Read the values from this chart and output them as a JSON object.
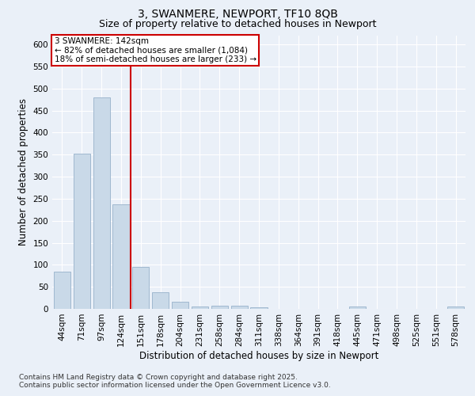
{
  "title": "3, SWANMERE, NEWPORT, TF10 8QB",
  "subtitle": "Size of property relative to detached houses in Newport",
  "xlabel": "Distribution of detached houses by size in Newport",
  "ylabel": "Number of detached properties",
  "categories": [
    "44sqm",
    "71sqm",
    "97sqm",
    "124sqm",
    "151sqm",
    "178sqm",
    "204sqm",
    "231sqm",
    "258sqm",
    "284sqm",
    "311sqm",
    "338sqm",
    "364sqm",
    "391sqm",
    "418sqm",
    "445sqm",
    "471sqm",
    "498sqm",
    "525sqm",
    "551sqm",
    "578sqm"
  ],
  "values": [
    85,
    352,
    480,
    238,
    96,
    37,
    16,
    6,
    8,
    8,
    4,
    0,
    0,
    0,
    0,
    5,
    0,
    0,
    0,
    0,
    5
  ],
  "bar_color": "#c9d9e8",
  "bar_edgecolor": "#a0b8d0",
  "redline_x": 3.5,
  "annotation_title": "3 SWANMERE: 142sqm",
  "annotation_line1": "← 82% of detached houses are smaller (1,084)",
  "annotation_line2": "18% of semi-detached houses are larger (233) →",
  "annotation_box_color": "#ffffff",
  "annotation_box_edgecolor": "#cc0000",
  "redline_color": "#cc0000",
  "ylim": [
    0,
    620
  ],
  "yticks": [
    0,
    50,
    100,
    150,
    200,
    250,
    300,
    350,
    400,
    450,
    500,
    550,
    600
  ],
  "footer1": "Contains HM Land Registry data © Crown copyright and database right 2025.",
  "footer2": "Contains public sector information licensed under the Open Government Licence v3.0.",
  "bg_color": "#eaf0f8",
  "plot_bg_color": "#eaf0f8",
  "title_fontsize": 10,
  "subtitle_fontsize": 9,
  "axis_label_fontsize": 8.5,
  "tick_fontsize": 7.5,
  "annotation_fontsize": 7.5,
  "footer_fontsize": 6.5
}
